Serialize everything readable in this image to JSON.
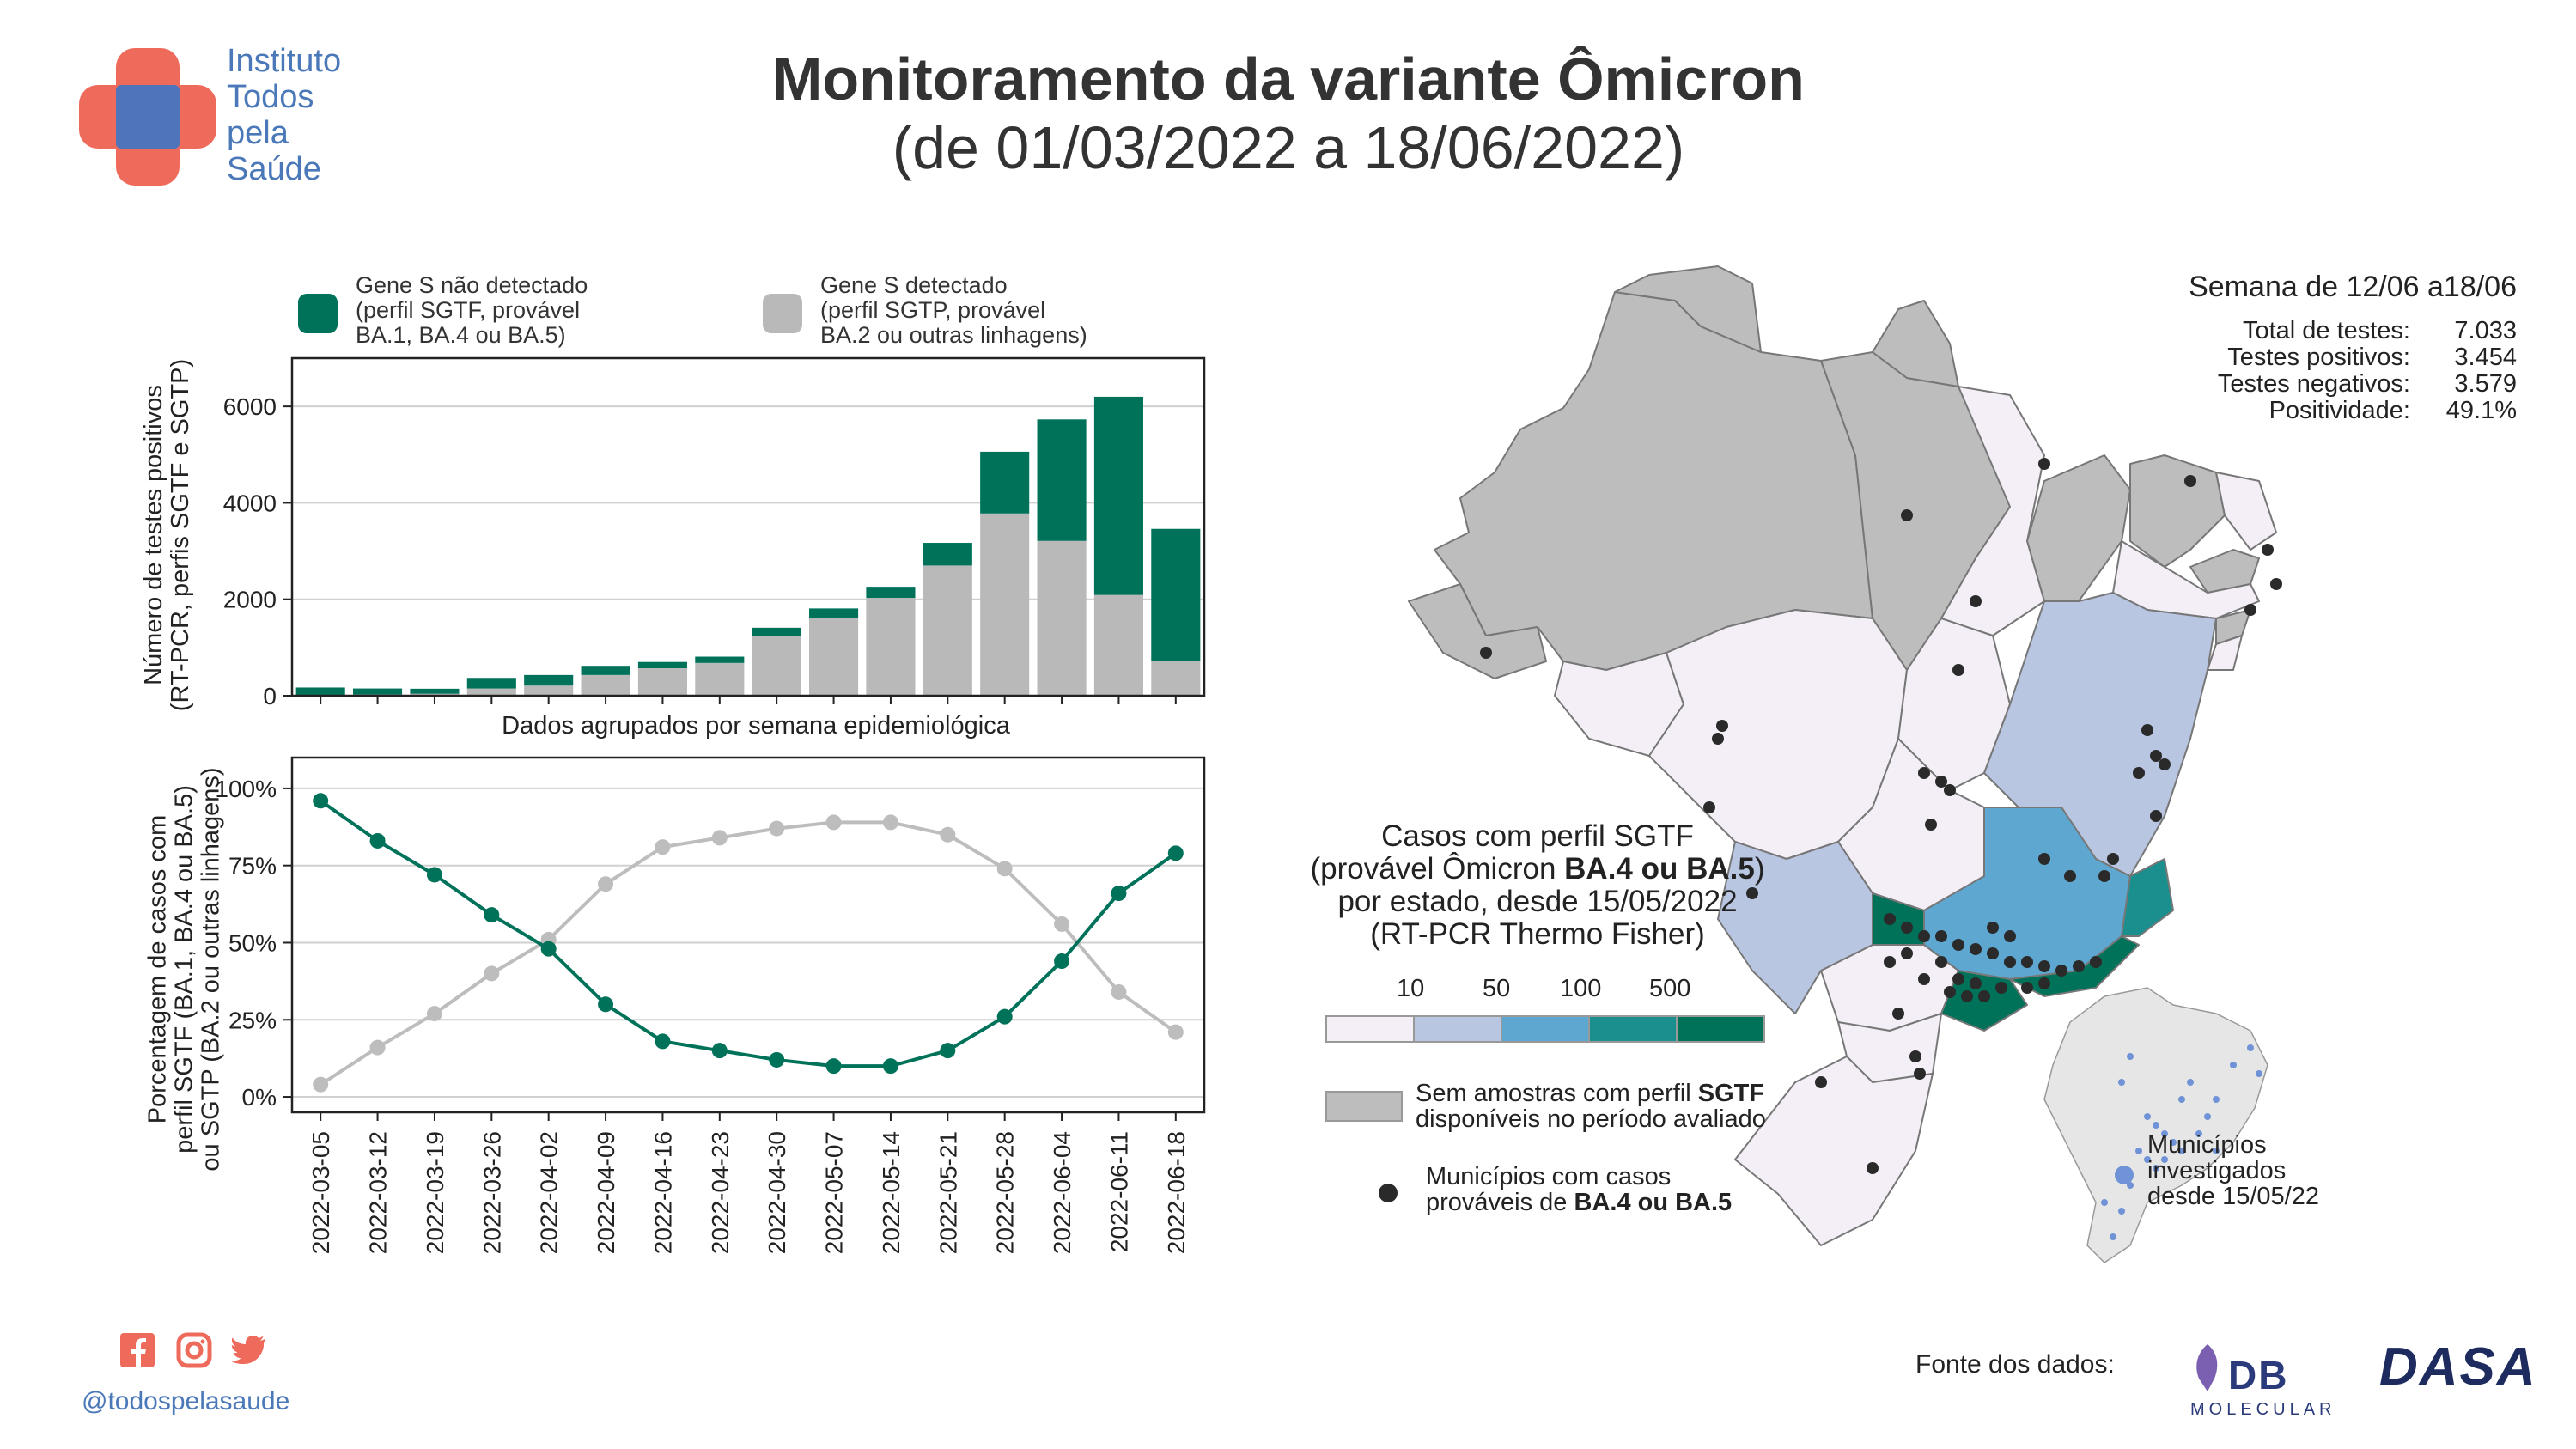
{
  "header": {
    "title": "Monitoramento da variante Ômicron",
    "subtitle": "(de 01/03/2022 a 18/06/2022)"
  },
  "logo": {
    "lines": [
      "Instituto",
      "Todos",
      "pela",
      "Saúde"
    ]
  },
  "legend": {
    "sgtf": {
      "line1": "Gene S não detectado",
      "line2": "(perfil SGTF, provável",
      "line3": "BA.1, BA.4 ou BA.5)",
      "color": "#00725a"
    },
    "sgtp": {
      "line1": "Gene S detectado",
      "line2": "(perfil SGTP, provável",
      "line3": "BA.2 ou outras linhagens)",
      "color": "#b9b9b9"
    }
  },
  "top_chart": {
    "ylabel_line1": "Número de testes positivos",
    "ylabel_line2": "(RT-PCR, perfis SGTF e SGTP)",
    "xlabel": "Dados agrupados por semana epidemiológica"
  },
  "bottom_chart": {
    "ylabel_line1": "Porcentagem de casos com",
    "ylabel_line2": "perfil SGTF (BA.1, BA.4 ou BA.5)",
    "ylabel_line3": "ou SGTP (BA.2 ou outras linhagens)"
  },
  "chart_data": [
    {
      "type": "bar",
      "stacked": true,
      "categories": [
        "2022-03-05",
        "2022-03-12",
        "2022-03-19",
        "2022-03-26",
        "2022-04-02",
        "2022-04-09",
        "2022-04-16",
        "2022-04-23",
        "2022-04-30",
        "2022-05-07",
        "2022-05-14",
        "2022-05-21",
        "2022-05-28",
        "2022-06-04",
        "2022-06-11",
        "2022-06-18"
      ],
      "series": [
        {
          "name": "Gene S detectado (perfil SGTP, provável BA.2 ou outras linhagens)",
          "color": "#b9b9b9",
          "values": [
            10,
            25,
            40,
            150,
            210,
            430,
            570,
            680,
            1240,
            1620,
            2030,
            2700,
            3780,
            3210,
            2090,
            720
          ]
        },
        {
          "name": "Gene S não detectado (perfil SGTF, provável BA.1, BA.4 ou BA.5)",
          "color": "#00725a",
          "values": [
            160,
            125,
            105,
            220,
            220,
            190,
            130,
            130,
            170,
            190,
            230,
            470,
            1280,
            2520,
            4110,
            2740
          ]
        }
      ],
      "yticks": [
        0,
        2000,
        4000,
        6000
      ],
      "ylim": [
        0,
        7000
      ]
    },
    {
      "type": "line",
      "categories": [
        "2022-03-05",
        "2022-03-12",
        "2022-03-19",
        "2022-03-26",
        "2022-04-02",
        "2022-04-09",
        "2022-04-16",
        "2022-04-23",
        "2022-04-30",
        "2022-05-07",
        "2022-05-14",
        "2022-05-21",
        "2022-05-28",
        "2022-06-04",
        "2022-06-11",
        "2022-06-18"
      ],
      "series": [
        {
          "name": "SGTF",
          "color": "#00725a",
          "values": [
            96,
            83,
            72,
            59,
            48,
            30,
            18,
            15,
            12,
            10,
            10,
            15,
            26,
            44,
            66,
            79
          ]
        },
        {
          "name": "SGTP",
          "color": "#bdbdbd",
          "values": [
            4,
            16,
            27,
            40,
            51,
            69,
            81,
            84,
            87,
            89,
            89,
            85,
            74,
            56,
            34,
            21
          ]
        }
      ],
      "yticks": [
        "0%",
        "25%",
        "50%",
        "75%",
        "100%"
      ],
      "ylim": [
        -5,
        110
      ]
    }
  ],
  "stats": {
    "week": "Semana de 12/06 a18/06",
    "rows": [
      {
        "label": "Total de testes:",
        "value": "7.033"
      },
      {
        "label": "Testes positivos:",
        "value": "3.454"
      },
      {
        "label": "Testes negativos:",
        "value": "3.579"
      },
      {
        "label": "Positividade:",
        "value": "49.1%"
      }
    ]
  },
  "map_legend": {
    "title_line1": "Casos com perfil SGTF",
    "title_line2_pre": "(provável Ômicron ",
    "title_line2_bold": "BA.4 ou BA.5",
    "title_line2_post": ")",
    "title_line3": "por estado, desde 15/05/2022",
    "title_line4": "(RT-PCR Thermo Fisher)",
    "scale_labels": [
      "10",
      "50",
      "100",
      "500"
    ],
    "scale_colors": [
      "#f4eff7",
      "#b9c6e1",
      "#5ea7d0",
      "#1b8e8e",
      "#00725a"
    ],
    "no_samples_pre": "Sem amostras com perfil ",
    "no_samples_bold": "SGTF",
    "no_samples_line2": "disponíveis no período avaliado",
    "municipios_line1": "Municípios com casos",
    "municipios_line2_pre": "prováveis de ",
    "municipios_line2_bold": "BA.4 ou BA.5",
    "inset_line1": "Municípios",
    "inset_line2": "investigados",
    "inset_line3": "desde 15/05/22"
  },
  "footer": {
    "handle": "@todospelasaude",
    "fonte": "Fonte dos dados:",
    "db_top": "DB",
    "db_bottom": "MOLECULAR",
    "dasa": "DASA"
  }
}
